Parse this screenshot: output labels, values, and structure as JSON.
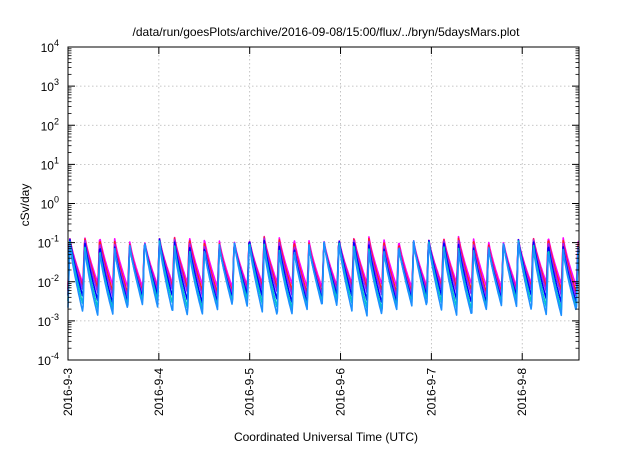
{
  "chart_data": {
    "type": "line",
    "title": "/data/run/goesPlots/archive/2016-09-08/15:00/flux/../bryn/5daysMars.plot",
    "xlabel": "Coordinated Universal Time (UTC)",
    "ylabel": "cSv/day",
    "yscale": "log",
    "ylim": [
      0.0001,
      10000
    ],
    "xlim": [
      "2016-09-03T00:00",
      "2016-09-08T15:00"
    ],
    "grid": true,
    "legend": "none",
    "x_ticks": [
      "2016-9-3",
      "2016-9-4",
      "2016-9-5",
      "2016-9-6",
      "2016-9-7",
      "2016-9-8"
    ],
    "y_ticks": [
      {
        "base": "10",
        "exp": "-4"
      },
      {
        "base": "10",
        "exp": "-3"
      },
      {
        "base": "10",
        "exp": "-2"
      },
      {
        "base": "10",
        "exp": "-1"
      },
      {
        "base": "10",
        "exp": "0"
      },
      {
        "base": "10",
        "exp": "1"
      },
      {
        "base": "10",
        "exp": "2"
      },
      {
        "base": "10",
        "exp": "3"
      },
      {
        "base": "10",
        "exp": "4"
      }
    ],
    "pattern": {
      "period_hours": 3.95,
      "peak_hour_of_day": 0,
      "series_peak_values": [
        0.13,
        0.12,
        0.11,
        0.1,
        0.09,
        0.085
      ],
      "series_trough_values": [
        0.008,
        0.006,
        0.005,
        0.0035,
        0.0025,
        0.0018
      ]
    },
    "series": [
      {
        "color": "#ff00ff"
      },
      {
        "color": "#ff2020"
      },
      {
        "color": "#a020f0"
      },
      {
        "color": "#0000ff"
      },
      {
        "color": "#00c8c8"
      },
      {
        "color": "#1e90ff"
      }
    ]
  }
}
